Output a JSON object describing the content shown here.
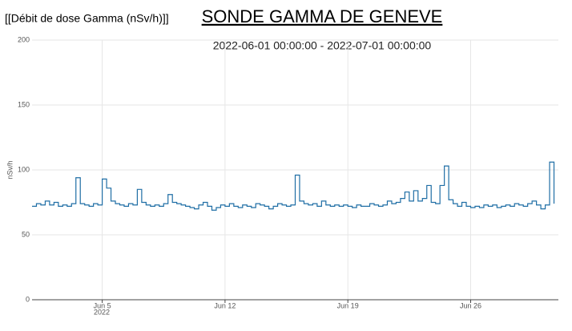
{
  "chart_data": {
    "type": "line",
    "header_label": "[[Débit de dose Gamma (nSv/h)]]",
    "title": "SONDE GAMMA DE GENEVE",
    "subtitle": "2022-06-01 00:00:00 - 2022-07-01 00:00:00",
    "y_label": "nSv/h",
    "xaxis_year": "2022",
    "x": [
      "2022-06-01 00:00",
      "2022-06-01 06:00",
      "2022-06-01 12:00",
      "2022-06-01 18:00",
      "2022-06-02 00:00",
      "2022-06-02 06:00",
      "2022-06-02 12:00",
      "2022-06-02 18:00",
      "2022-06-03 00:00",
      "2022-06-03 06:00",
      "2022-06-03 12:00",
      "2022-06-03 18:00",
      "2022-06-04 00:00",
      "2022-06-04 06:00",
      "2022-06-04 12:00",
      "2022-06-04 18:00",
      "2022-06-05 00:00",
      "2022-06-05 06:00",
      "2022-06-05 12:00",
      "2022-06-05 18:00",
      "2022-06-06 00:00",
      "2022-06-06 06:00",
      "2022-06-06 12:00",
      "2022-06-06 18:00",
      "2022-06-07 00:00",
      "2022-06-07 06:00",
      "2022-06-07 12:00",
      "2022-06-07 18:00",
      "2022-06-08 00:00",
      "2022-06-08 06:00",
      "2022-06-08 12:00",
      "2022-06-08 18:00",
      "2022-06-09 00:00",
      "2022-06-09 06:00",
      "2022-06-09 12:00",
      "2022-06-09 18:00",
      "2022-06-10 00:00",
      "2022-06-10 06:00",
      "2022-06-10 12:00",
      "2022-06-10 18:00",
      "2022-06-11 00:00",
      "2022-06-11 06:00",
      "2022-06-11 12:00",
      "2022-06-11 18:00",
      "2022-06-12 00:00",
      "2022-06-12 06:00",
      "2022-06-12 12:00",
      "2022-06-12 18:00",
      "2022-06-13 00:00",
      "2022-06-13 06:00",
      "2022-06-13 12:00",
      "2022-06-13 18:00",
      "2022-06-14 00:00",
      "2022-06-14 06:00",
      "2022-06-14 12:00",
      "2022-06-14 18:00",
      "2022-06-15 00:00",
      "2022-06-15 06:00",
      "2022-06-15 12:00",
      "2022-06-15 18:00",
      "2022-06-16 00:00",
      "2022-06-16 06:00",
      "2022-06-16 12:00",
      "2022-06-16 18:00",
      "2022-06-17 00:00",
      "2022-06-17 06:00",
      "2022-06-17 12:00",
      "2022-06-17 18:00",
      "2022-06-18 00:00",
      "2022-06-18 06:00",
      "2022-06-18 12:00",
      "2022-06-18 18:00",
      "2022-06-19 00:00",
      "2022-06-19 06:00",
      "2022-06-19 12:00",
      "2022-06-19 18:00",
      "2022-06-20 00:00",
      "2022-06-20 06:00",
      "2022-06-20 12:00",
      "2022-06-20 18:00",
      "2022-06-21 00:00",
      "2022-06-21 06:00",
      "2022-06-21 12:00",
      "2022-06-21 18:00",
      "2022-06-22 00:00",
      "2022-06-22 06:00",
      "2022-06-22 12:00",
      "2022-06-22 18:00",
      "2022-06-23 00:00",
      "2022-06-23 06:00",
      "2022-06-23 12:00",
      "2022-06-23 18:00",
      "2022-06-24 00:00",
      "2022-06-24 06:00",
      "2022-06-24 12:00",
      "2022-06-24 18:00",
      "2022-06-25 00:00",
      "2022-06-25 06:00",
      "2022-06-25 12:00",
      "2022-06-25 18:00",
      "2022-06-26 00:00",
      "2022-06-26 06:00",
      "2022-06-26 12:00",
      "2022-06-26 18:00",
      "2022-06-27 00:00",
      "2022-06-27 06:00",
      "2022-06-27 12:00",
      "2022-06-27 18:00",
      "2022-06-28 00:00",
      "2022-06-28 06:00",
      "2022-06-28 12:00",
      "2022-06-28 18:00",
      "2022-06-29 00:00",
      "2022-06-29 06:00",
      "2022-06-29 12:00",
      "2022-06-29 18:00",
      "2022-06-30 00:00",
      "2022-06-30 06:00",
      "2022-06-30 12:00",
      "2022-06-30 18:00"
    ],
    "series": [
      {
        "color": "#1f6ea5",
        "values": [
          72,
          74,
          73,
          76,
          73,
          75,
          72,
          73,
          72,
          74,
          94,
          74,
          73,
          72,
          74,
          73,
          93,
          86,
          76,
          74,
          73,
          72,
          74,
          73,
          85,
          75,
          73,
          72,
          73,
          72,
          74,
          81,
          75,
          74,
          73,
          72,
          71,
          70,
          73,
          75,
          72,
          69,
          71,
          73,
          72,
          74,
          72,
          71,
          73,
          72,
          71,
          74,
          73,
          72,
          70,
          72,
          74,
          73,
          72,
          73,
          96,
          76,
          74,
          73,
          74,
          72,
          76,
          73,
          72,
          73,
          72,
          73,
          72,
          71,
          73,
          72,
          72,
          74,
          73,
          72,
          73,
          76,
          74,
          75,
          78,
          83,
          76,
          84,
          76,
          78,
          88,
          75,
          74,
          88,
          103,
          77,
          74,
          72,
          75,
          72,
          71,
          72,
          71,
          73,
          72,
          73,
          71,
          72,
          73,
          72,
          74,
          73,
          72,
          74,
          76,
          73,
          70,
          73,
          106,
          74
        ]
      }
    ],
    "xlim": [
      "2022-06-01 00:00",
      "2022-07-01 00:00"
    ],
    "xticks": [
      {
        "value": "2022-06-05 00:00",
        "label": "Jun 5"
      },
      {
        "value": "2022-06-12 00:00",
        "label": "Jun 12"
      },
      {
        "value": "2022-06-19 00:00",
        "label": "Jun 19"
      },
      {
        "value": "2022-06-26 00:00",
        "label": "Jun 26"
      }
    ],
    "ylim": [
      0,
      200
    ],
    "yticks": [
      0,
      50,
      100,
      150,
      200
    ],
    "grid": true
  }
}
